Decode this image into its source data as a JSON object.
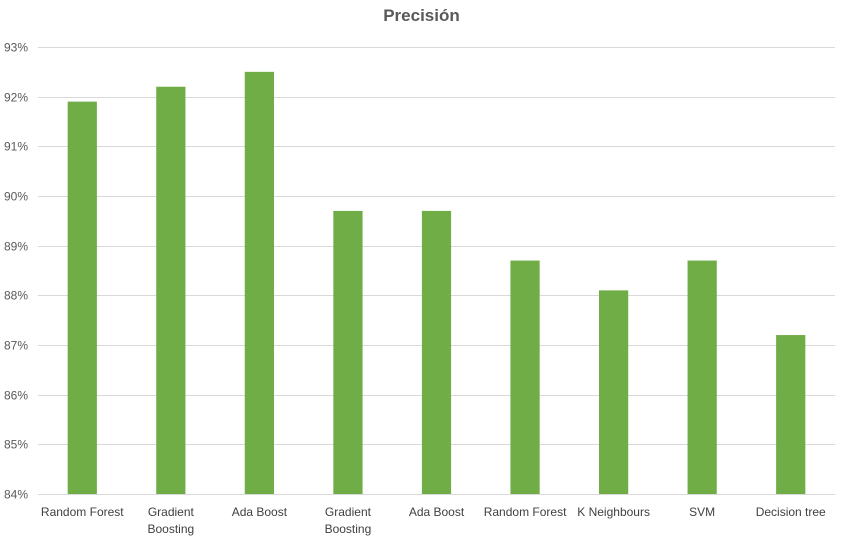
{
  "chart_data": {
    "type": "bar",
    "title": "Precisión",
    "xlabel": "",
    "ylabel": "",
    "categories": [
      "Random Forest",
      "Gradient Boosting",
      "Ada Boost",
      "Gradient Boosting",
      "Ada Boost",
      "Random Forest",
      "K Neighbours",
      "SVM",
      "Decision tree"
    ],
    "category_lines": [
      [
        "Random Forest"
      ],
      [
        "Gradient",
        "Boosting"
      ],
      [
        "Ada Boost"
      ],
      [
        "Gradient",
        "Boosting"
      ],
      [
        "Ada Boost"
      ],
      [
        "Random Forest"
      ],
      [
        "K Neighbours"
      ],
      [
        "SVM"
      ],
      [
        "Decision tree"
      ]
    ],
    "values": [
      91.9,
      92.2,
      92.5,
      89.7,
      89.7,
      88.7,
      88.1,
      88.7,
      87.2
    ],
    "ylim": [
      84,
      93
    ],
    "yticks": [
      84,
      85,
      86,
      87,
      88,
      89,
      90,
      91,
      92,
      93
    ],
    "ytick_labels": [
      "84%",
      "85%",
      "86%",
      "87%",
      "88%",
      "89%",
      "90%",
      "91%",
      "92%",
      "93%"
    ],
    "grid": true,
    "legend": "none",
    "bar_color": "#70AD47",
    "grid_color": "#D9D9D9"
  }
}
